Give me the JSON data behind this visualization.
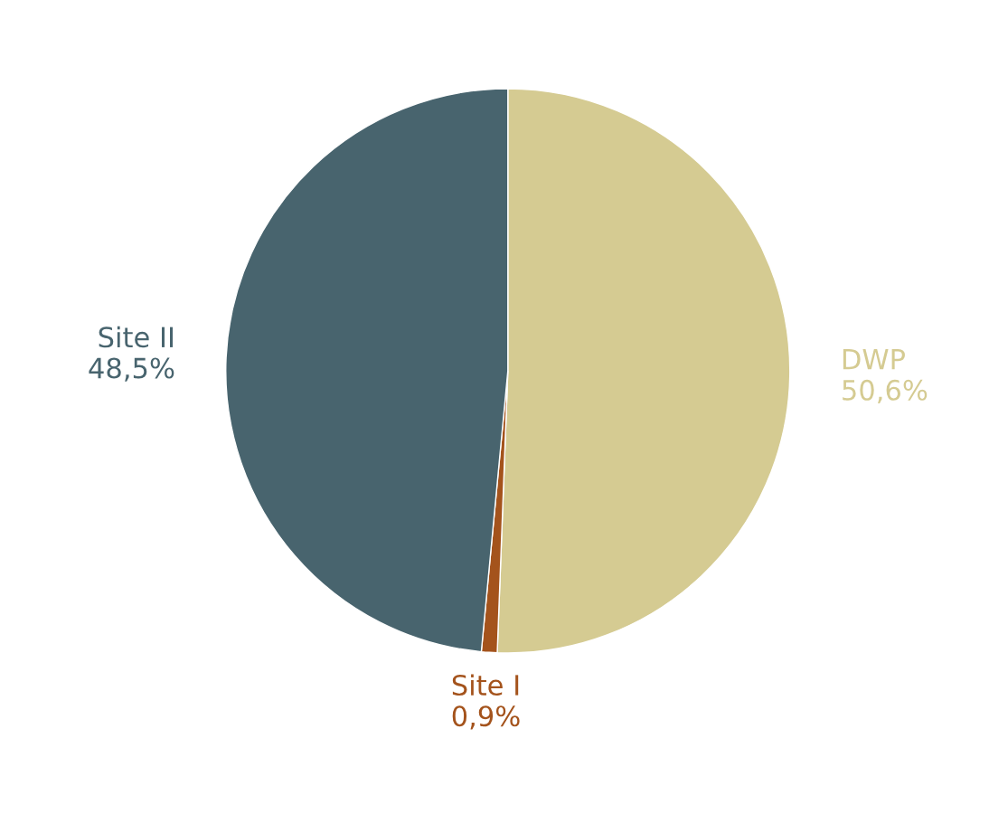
{
  "chart_data": {
    "type": "pie",
    "categories": [
      "DWP",
      "Site I",
      "Site II"
    ],
    "values": [
      50.6,
      0.9,
      48.5
    ],
    "value_labels": [
      "50,6%",
      "0,9%",
      "48,5%"
    ],
    "colors": [
      "#d5cb92",
      "#a4531c",
      "#48646e"
    ]
  }
}
